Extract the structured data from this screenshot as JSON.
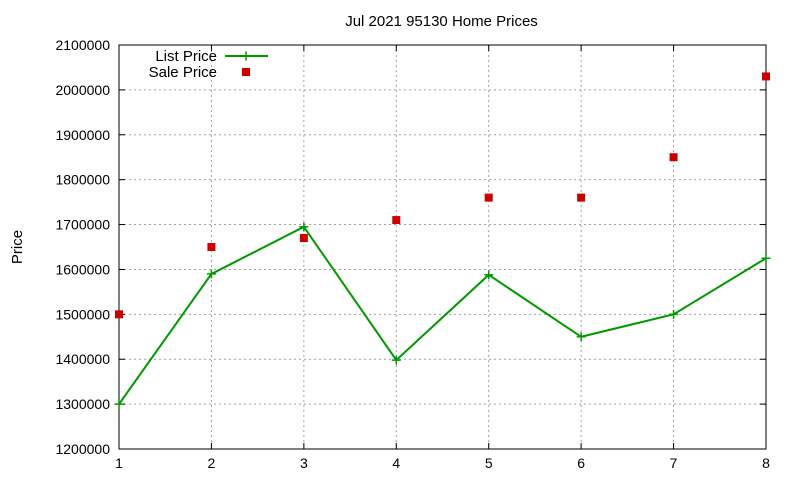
{
  "chart_data": {
    "type": "line",
    "title": "Jul 2021 95130 Home Prices",
    "xlabel": "",
    "ylabel": "Price",
    "x": [
      1,
      2,
      3,
      4,
      5,
      6,
      7,
      8
    ],
    "xlim": [
      1,
      8
    ],
    "ylim": [
      1200000,
      2100000
    ],
    "xticks": [
      "1",
      "2",
      "3",
      "4",
      "5",
      "6",
      "7",
      "8"
    ],
    "yticks": [
      "1200000",
      "1300000",
      "1400000",
      "1500000",
      "1600000",
      "1700000",
      "1800000",
      "1900000",
      "2000000",
      "2100000"
    ],
    "grid": true,
    "legend_position": "top-left",
    "series": [
      {
        "name": "List Price",
        "style": "line-with-plus-markers",
        "color": "#009900",
        "values": [
          1300000,
          1590000,
          1695000,
          1398000,
          1588000,
          1450000,
          1500000,
          1625000
        ]
      },
      {
        "name": "Sale Price",
        "style": "square-markers",
        "color": "#cc0000",
        "values": [
          1500000,
          1650000,
          1670000,
          1710000,
          1760000,
          1760000,
          1850000,
          2030000
        ]
      }
    ]
  }
}
